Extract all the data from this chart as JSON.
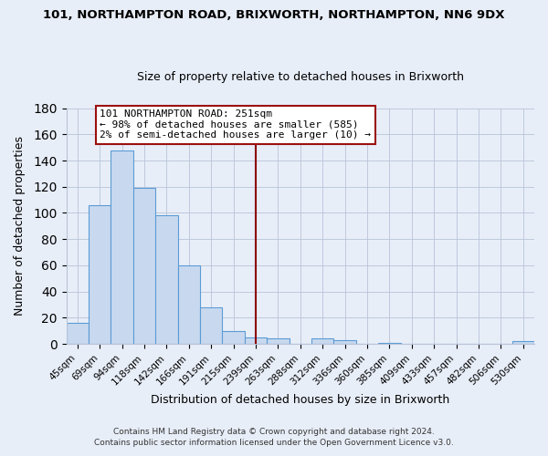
{
  "title": "101, NORTHAMPTON ROAD, BRIXWORTH, NORTHAMPTON, NN6 9DX",
  "subtitle": "Size of property relative to detached houses in Brixworth",
  "xlabel": "Distribution of detached houses by size in Brixworth",
  "ylabel": "Number of detached properties",
  "bar_labels": [
    "45sqm",
    "69sqm",
    "94sqm",
    "118sqm",
    "142sqm",
    "166sqm",
    "191sqm",
    "215sqm",
    "239sqm",
    "263sqm",
    "288sqm",
    "312sqm",
    "336sqm",
    "360sqm",
    "385sqm",
    "409sqm",
    "433sqm",
    "457sqm",
    "482sqm",
    "506sqm",
    "530sqm"
  ],
  "bar_values": [
    16,
    106,
    148,
    119,
    98,
    60,
    28,
    10,
    5,
    4,
    0,
    4,
    3,
    0,
    1,
    0,
    0,
    0,
    0,
    0,
    2
  ],
  "bar_color": "#c8d9ef",
  "bar_edge_color": "#5b9bd5",
  "ylim": [
    0,
    180
  ],
  "yticks": [
    0,
    20,
    40,
    60,
    80,
    100,
    120,
    140,
    160,
    180
  ],
  "vline_color": "#8b0000",
  "annotation_title": "101 NORTHAMPTON ROAD: 251sqm",
  "annotation_line1": "← 98% of detached houses are smaller (585)",
  "annotation_line2": "2% of semi-detached houses are larger (10) →",
  "annotation_box_color": "#ffffff",
  "annotation_box_edge": "#9b1010",
  "footer1": "Contains HM Land Registry data © Crown copyright and database right 2024.",
  "footer2": "Contains public sector information licensed under the Open Government Licence v3.0.",
  "background_color": "#e8eef8",
  "plot_bg_color": "#e8eef8"
}
